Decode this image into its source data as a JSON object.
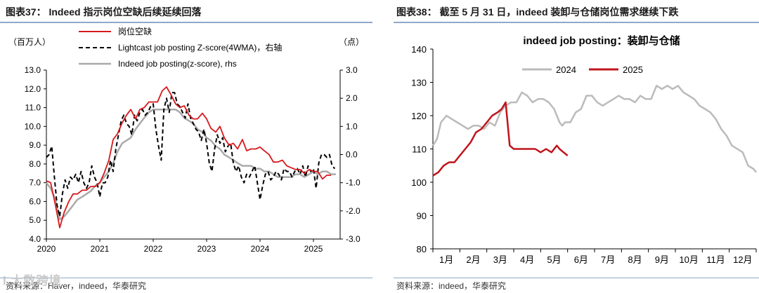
{
  "left": {
    "figure_title": "图表37：  Indeed 指示岗位空缺后续延续回落",
    "source": "资料来源：Haver，indeed，华泰研究",
    "watermark": "i 大数跨境"
  },
  "right": {
    "figure_title": "图表38：  截至 5 月 31 日，indeed 装卸与仓储岗位需求继续下跌",
    "source": "资料来源：indeed，华泰研究"
  },
  "colors": {
    "red": "#d7191c",
    "black": "#000000",
    "gray": "#aaaaaa",
    "rule": "#8fa8c8"
  },
  "chart_data": [
    {
      "type": "line",
      "title": "",
      "left_unit": "（百万人）",
      "right_unit": "（点）",
      "x_ticks": [
        "2020",
        "2021",
        "2022",
        "2023",
        "2024",
        "2025"
      ],
      "xlim": [
        2020.0,
        2025.5
      ],
      "ylim_left": [
        4.0,
        13.0
      ],
      "ylim_right": [
        -3.0,
        3.0
      ],
      "yticks_left": [
        "4.0",
        "5.0",
        "6.0",
        "7.0",
        "8.0",
        "9.0",
        "10.0",
        "11.0",
        "12.0",
        "13.0"
      ],
      "yticks_right": [
        "-3.0",
        "-2.0",
        "-1.0",
        "0.0",
        "1.0",
        "2.0",
        "3.0"
      ],
      "legend": [
        "岗位空缺",
        "Lightcast job posting Z-score(4WMA)，右轴",
        "Indeed job posting(z-score), rhs"
      ],
      "series": [
        {
          "name": "岗位空缺",
          "axis": "left",
          "style": "solid",
          "color": "#d7191c",
          "x": [
            2020.0,
            2020.08,
            2020.17,
            2020.25,
            2020.33,
            2020.42,
            2020.5,
            2020.58,
            2020.67,
            2020.75,
            2020.83,
            2020.92,
            2021.0,
            2021.08,
            2021.17,
            2021.25,
            2021.33,
            2021.42,
            2021.5,
            2021.58,
            2021.67,
            2021.75,
            2021.83,
            2021.92,
            2022.0,
            2022.08,
            2022.17,
            2022.25,
            2022.33,
            2022.42,
            2022.5,
            2022.58,
            2022.67,
            2022.75,
            2022.83,
            2022.92,
            2023.0,
            2023.08,
            2023.17,
            2023.25,
            2023.33,
            2023.42,
            2023.5,
            2023.58,
            2023.67,
            2023.75,
            2023.83,
            2023.92,
            2024.0,
            2024.08,
            2024.17,
            2024.25,
            2024.33,
            2024.42,
            2024.5,
            2024.58,
            2024.67,
            2024.75,
            2024.83,
            2024.92,
            2025.0,
            2025.08,
            2025.17,
            2025.25,
            2025.33
          ],
          "y": [
            7.1,
            7.0,
            5.8,
            4.6,
            5.4,
            6.0,
            6.4,
            6.4,
            6.6,
            6.6,
            6.8,
            6.8,
            7.0,
            7.5,
            8.2,
            9.3,
            9.6,
            10.2,
            10.6,
            10.9,
            10.4,
            10.9,
            11.0,
            11.3,
            11.3,
            11.3,
            11.9,
            12.1,
            11.7,
            11.2,
            11.0,
            11.1,
            10.6,
            10.4,
            10.4,
            10.7,
            10.4,
            9.9,
            9.7,
            10.0,
            9.4,
            9.0,
            9.1,
            8.8,
            9.3,
            8.7,
            8.8,
            8.8,
            8.9,
            8.7,
            8.5,
            8.1,
            8.1,
            8.2,
            7.9,
            7.8,
            7.7,
            7.7,
            7.5,
            7.7,
            7.6,
            7.6,
            7.2,
            7.4,
            7.4
          ]
        },
        {
          "name": "Lightcast job posting Z-score(4WMA)",
          "axis": "right",
          "style": "dashed",
          "color": "#000000",
          "x": [
            2020.0,
            2020.05,
            2020.1,
            2020.15,
            2020.2,
            2020.25,
            2020.3,
            2020.35,
            2020.4,
            2020.45,
            2020.5,
            2020.55,
            2020.6,
            2020.65,
            2020.7,
            2020.75,
            2020.8,
            2020.85,
            2020.9,
            2020.95,
            2021.0,
            2021.05,
            2021.1,
            2021.15,
            2021.2,
            2021.25,
            2021.3,
            2021.35,
            2021.4,
            2021.45,
            2021.5,
            2021.55,
            2021.6,
            2021.65,
            2021.7,
            2021.75,
            2021.8,
            2021.85,
            2021.9,
            2021.95,
            2022.0,
            2022.05,
            2022.1,
            2022.15,
            2022.2,
            2022.25,
            2022.3,
            2022.35,
            2022.4,
            2022.45,
            2022.5,
            2022.55,
            2022.6,
            2022.65,
            2022.7,
            2022.75,
            2022.8,
            2022.85,
            2022.9,
            2022.95,
            2023.0,
            2023.05,
            2023.1,
            2023.15,
            2023.2,
            2023.25,
            2023.3,
            2023.35,
            2023.4,
            2023.45,
            2023.5,
            2023.55,
            2023.6,
            2023.65,
            2023.7,
            2023.75,
            2023.8,
            2023.85,
            2023.9,
            2023.95,
            2024.0,
            2024.05,
            2024.1,
            2024.15,
            2024.2,
            2024.25,
            2024.3,
            2024.35,
            2024.4,
            2024.45,
            2024.5,
            2024.55,
            2024.6,
            2024.65,
            2024.7,
            2024.75,
            2024.8,
            2024.85,
            2024.9,
            2024.95,
            2025.0,
            2025.05,
            2025.1,
            2025.15,
            2025.2,
            2025.25,
            2025.3,
            2025.35,
            2025.4
          ],
          "y": [
            -0.1,
            0.0,
            0.3,
            -0.8,
            -1.8,
            -2.2,
            -1.4,
            -0.9,
            -1.2,
            -0.8,
            -0.9,
            -0.7,
            -1.0,
            -0.6,
            -1.0,
            -1.2,
            -1.0,
            -0.4,
            -0.8,
            -1.0,
            -1.5,
            -1.0,
            -1.0,
            -0.8,
            -0.2,
            -0.6,
            0.2,
            0.7,
            1.2,
            1.4,
            1.1,
            1.0,
            0.7,
            1.4,
            1.2,
            1.5,
            1.6,
            1.4,
            1.5,
            1.7,
            1.8,
            0.9,
            0.3,
            -0.2,
            1.6,
            2.0,
            1.5,
            2.2,
            2.2,
            1.8,
            1.7,
            1.5,
            1.3,
            1.8,
            1.3,
            1.1,
            0.9,
            0.8,
            0.5,
            0.9,
            0.4,
            -0.3,
            -0.6,
            0.2,
            0.7,
            0.4,
            0.6,
            0.1,
            0.3,
            0.4,
            -0.3,
            -0.6,
            -0.4,
            -0.8,
            -1.0,
            -0.7,
            -0.8,
            -0.6,
            -0.4,
            -1.0,
            -1.6,
            -1.1,
            -0.7,
            -0.6,
            -0.9,
            -0.8,
            -0.6,
            -0.7,
            -0.9,
            -0.5,
            -0.6,
            -0.6,
            -0.8,
            -0.6,
            -0.5,
            -0.7,
            -0.4,
            -0.8,
            -0.4,
            -0.6,
            -0.5,
            -1.2,
            -0.3,
            0.0,
            0.0,
            -0.1,
            0.0,
            -0.4,
            -0.5
          ]
        },
        {
          "name": "Indeed job posting(z-score)",
          "axis": "right",
          "style": "solid",
          "color": "#aaaaaa",
          "x": [
            2020.0,
            2020.08,
            2020.17,
            2020.25,
            2020.33,
            2020.42,
            2020.5,
            2020.58,
            2020.67,
            2020.75,
            2020.83,
            2020.92,
            2021.0,
            2021.08,
            2021.17,
            2021.25,
            2021.33,
            2021.42,
            2021.5,
            2021.58,
            2021.67,
            2021.75,
            2021.83,
            2021.92,
            2022.0,
            2022.08,
            2022.17,
            2022.25,
            2022.33,
            2022.42,
            2022.5,
            2022.58,
            2022.67,
            2022.75,
            2022.83,
            2022.92,
            2023.0,
            2023.08,
            2023.17,
            2023.25,
            2023.33,
            2023.42,
            2023.5,
            2023.58,
            2023.67,
            2023.75,
            2023.83,
            2023.92,
            2024.0,
            2024.08,
            2024.17,
            2024.25,
            2024.33,
            2024.42,
            2024.5,
            2024.58,
            2024.67,
            2024.75,
            2024.83,
            2024.92,
            2025.0,
            2025.08,
            2025.17,
            2025.25,
            2025.33,
            2025.42
          ],
          "y": [
            -1.0,
            -1.2,
            -1.6,
            -2.3,
            -2.2,
            -2.0,
            -1.8,
            -1.6,
            -1.5,
            -1.4,
            -1.3,
            -1.1,
            -1.0,
            -0.8,
            -0.6,
            -0.3,
            0.1,
            0.4,
            0.5,
            0.6,
            0.9,
            1.1,
            1.3,
            1.5,
            1.6,
            1.6,
            1.6,
            1.6,
            1.6,
            1.6,
            1.5,
            1.3,
            1.2,
            1.1,
            0.9,
            0.8,
            0.6,
            0.5,
            0.3,
            0.2,
            0.0,
            -0.1,
            -0.2,
            -0.3,
            -0.4,
            -0.4,
            -0.4,
            -0.5,
            -0.5,
            -0.6,
            -0.6,
            -0.7,
            -0.8,
            -0.8,
            -0.8,
            -0.8,
            -0.7,
            -0.7,
            -0.8,
            -0.7,
            -0.6,
            -0.7,
            -0.6,
            -0.6,
            -0.7,
            -0.7
          ]
        }
      ]
    },
    {
      "type": "line",
      "title": "indeed job posting：装卸与仓储",
      "x_ticks": [
        "1月",
        "2月",
        "3月",
        "4月",
        "5月",
        "6月",
        "7月",
        "8月",
        "9月",
        "10月",
        "11月",
        "12月"
      ],
      "xlim": [
        1.0,
        13.0
      ],
      "ylim": [
        80,
        140
      ],
      "yticks": [
        "80",
        "90",
        "100",
        "110",
        "120",
        "130",
        "140"
      ],
      "legend": [
        "2024",
        "2025"
      ],
      "series": [
        {
          "name": "2024",
          "color": "#bbbbbb",
          "x": [
            1.0,
            1.15,
            1.3,
            1.5,
            1.7,
            1.9,
            2.1,
            2.3,
            2.5,
            2.7,
            2.9,
            3.1,
            3.3,
            3.5,
            3.7,
            3.9,
            4.1,
            4.3,
            4.5,
            4.7,
            4.9,
            5.1,
            5.3,
            5.5,
            5.7,
            5.8,
            5.9,
            6.1,
            6.3,
            6.5,
            6.7,
            6.9,
            7.1,
            7.3,
            7.5,
            7.7,
            7.9,
            8.1,
            8.3,
            8.5,
            8.7,
            8.9,
            9.1,
            9.3,
            9.5,
            9.7,
            9.9,
            10.1,
            10.3,
            10.5,
            10.7,
            10.9,
            11.1,
            11.3,
            11.5,
            11.7,
            11.9,
            12.1,
            12.3,
            12.5,
            12.7,
            12.9,
            13.0
          ],
          "y": [
            111,
            113,
            118,
            120,
            119,
            118,
            117,
            116,
            117,
            117,
            116,
            118,
            117,
            121,
            123,
            124,
            124,
            127,
            126,
            124,
            125,
            125,
            124,
            122,
            118,
            117,
            118,
            118,
            121,
            122,
            126,
            126,
            124,
            123,
            124,
            125,
            126,
            125,
            125,
            124,
            126,
            125,
            125,
            129,
            128,
            129,
            128,
            129,
            127,
            126,
            125,
            123,
            122,
            121,
            119,
            116,
            114,
            111,
            110,
            109,
            105,
            104,
            103
          ]
        },
        {
          "name": "2025",
          "color": "#c0141b",
          "x": [
            1.0,
            1.2,
            1.4,
            1.6,
            1.8,
            2.0,
            2.2,
            2.4,
            2.6,
            2.8,
            3.0,
            3.2,
            3.4,
            3.55,
            3.7,
            3.85,
            4.0,
            4.2,
            4.4,
            4.6,
            4.8,
            5.0,
            5.2,
            5.4,
            5.5,
            5.6,
            5.7,
            5.85,
            6.0
          ],
          "y": [
            102,
            103,
            105,
            106,
            106,
            108,
            110,
            112,
            115,
            116,
            118,
            120,
            121,
            122,
            124,
            111,
            110,
            110,
            110,
            110,
            110,
            109,
            110,
            109,
            110,
            111,
            110,
            109,
            108
          ]
        }
      ]
    }
  ]
}
